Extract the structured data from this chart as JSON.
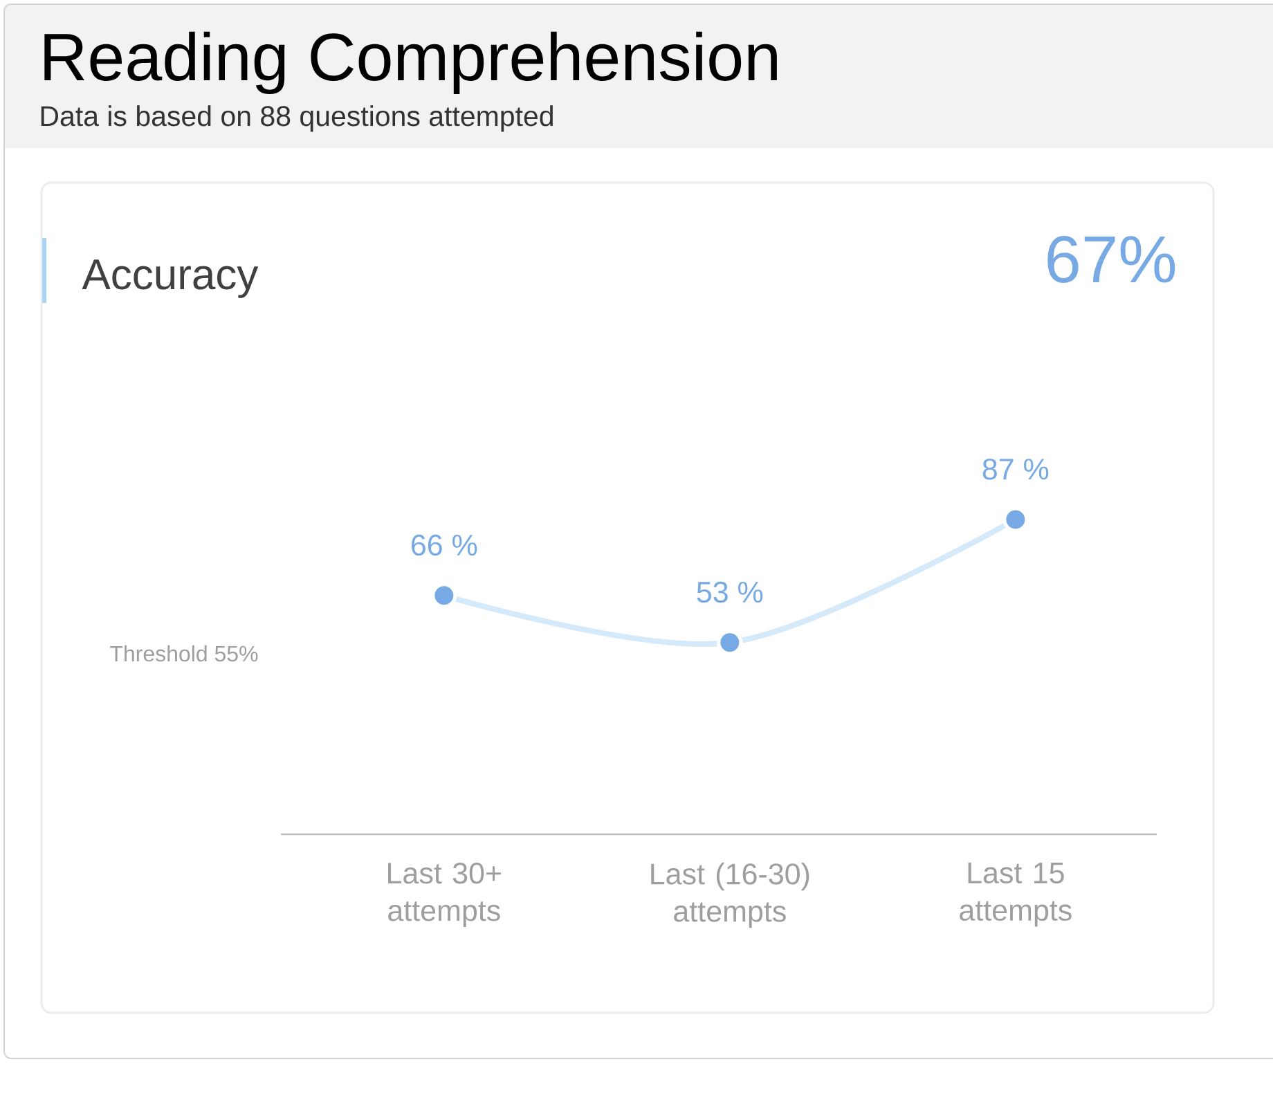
{
  "chart_data": {
    "type": "line",
    "title": "Reading Comprehension",
    "subtitle": "Data is based on 88 questions attempted",
    "categories": [
      "Last 30+ attempts",
      "Last (16-30) attempts",
      "Last 15 attempts"
    ],
    "values": [
      66,
      53,
      87
    ],
    "value_labels": [
      "66 %",
      "53 %",
      "87 %"
    ],
    "color": "#d4e9fa",
    "colors": [
      "#77aae5",
      "#77aae5",
      "#77aae5"
    ],
    "marker": "circle",
    "annotations": [
      "Accuracy",
      "67%",
      "Threshold 55%"
    ]
  }
}
